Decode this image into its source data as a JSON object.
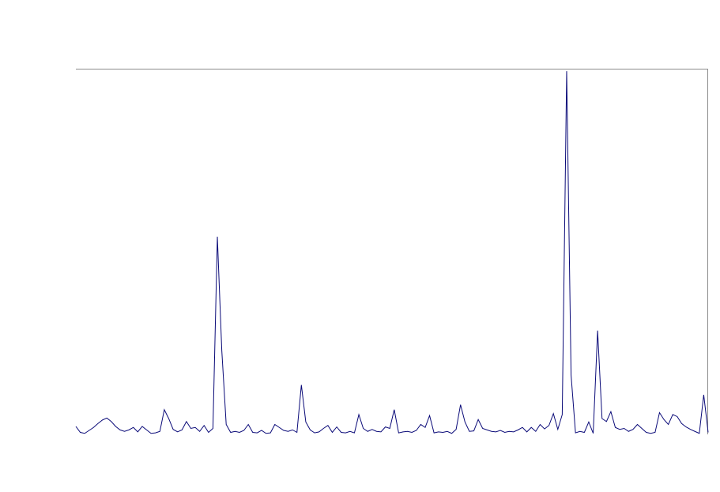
{
  "chart_data": {
    "type": "line",
    "title": "",
    "xlabel": "",
    "ylabel": "",
    "grid": false,
    "legend": "none",
    "xlim": [
      0,
      143
    ],
    "ylim": [
      0,
      74
    ],
    "colors": {
      "line": "#0a0a78",
      "axes": "#8c8c8c"
    },
    "series": [
      {
        "values": [
          1.6,
          0.4,
          0.2,
          0.8,
          1.4,
          2.2,
          2.9,
          3.3,
          2.6,
          1.6,
          0.9,
          0.6,
          0.9,
          1.4,
          0.5,
          1.6,
          0.9,
          0.2,
          0.3,
          0.6,
          5.0,
          3.2,
          1.0,
          0.5,
          0.9,
          2.6,
          1.2,
          1.4,
          0.6,
          1.8,
          0.4,
          1.2,
          40.0,
          17.0,
          2.0,
          0.4,
          0.6,
          0.4,
          0.8,
          2.0,
          0.4,
          0.3,
          0.8,
          0.2,
          0.3,
          2.0,
          1.4,
          0.8,
          0.6,
          0.9,
          0.4,
          10.0,
          2.5,
          0.9,
          0.3,
          0.5,
          1.2,
          1.8,
          0.4,
          1.5,
          0.4,
          0.3,
          0.6,
          0.3,
          4.0,
          1.2,
          0.6,
          1.0,
          0.6,
          0.5,
          1.5,
          1.2,
          5.0,
          0.3,
          0.5,
          0.6,
          0.4,
          0.8,
          2.0,
          1.4,
          3.8,
          0.3,
          0.5,
          0.4,
          0.6,
          0.2,
          1.0,
          6.0,
          2.5,
          0.6,
          0.7,
          3.0,
          1.2,
          0.9,
          0.6,
          0.5,
          0.8,
          0.4,
          0.6,
          0.5,
          0.9,
          1.4,
          0.5,
          1.4,
          0.6,
          2.0,
          1.1,
          1.8,
          4.2,
          1.0,
          4.0,
          73.5,
          12.0,
          0.3,
          0.6,
          0.4,
          2.5,
          0.2,
          21.0,
          3.2,
          2.6,
          4.6,
          1.4,
          1.0,
          1.2,
          0.6,
          1.0,
          2.0,
          1.2,
          0.4,
          0.2,
          0.4,
          4.4,
          3.0,
          2.0,
          4.0,
          3.6,
          2.2,
          1.5,
          1.0,
          0.6,
          0.2,
          8.0,
          0.4
        ]
      }
    ]
  }
}
